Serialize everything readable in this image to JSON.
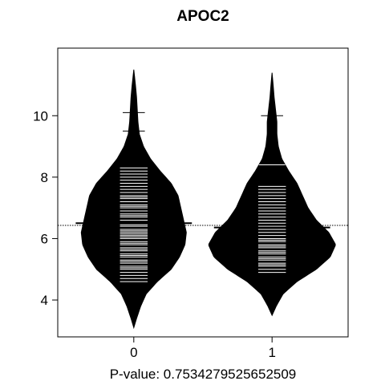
{
  "chart_data": {
    "type": "beanplot",
    "title": "APOC2",
    "xlabel": "P-value: 0.7534279525652509",
    "ylabel": "",
    "categories": [
      "0",
      "1"
    ],
    "ylim": [
      2.8,
      12.2
    ],
    "xlim": [
      -0.55,
      1.55
    ],
    "y_ticks": [
      4,
      6,
      8,
      10
    ],
    "y_tick_labels": [
      "4",
      "6",
      "8",
      "10"
    ],
    "overall_mean": 6.43,
    "groups": [
      {
        "name": "0",
        "mean": 6.5,
        "density": [
          [
            3.1,
            0
          ],
          [
            3.4,
            0.02
          ],
          [
            3.8,
            0.05
          ],
          [
            4.2,
            0.09
          ],
          [
            4.6,
            0.17
          ],
          [
            5.0,
            0.27
          ],
          [
            5.4,
            0.33
          ],
          [
            5.8,
            0.37
          ],
          [
            6.2,
            0.38
          ],
          [
            6.6,
            0.36
          ],
          [
            7.0,
            0.34
          ],
          [
            7.4,
            0.32
          ],
          [
            7.8,
            0.27
          ],
          [
            8.2,
            0.19
          ],
          [
            8.6,
            0.12
          ],
          [
            9.0,
            0.07
          ],
          [
            9.4,
            0.04
          ],
          [
            9.8,
            0.03
          ],
          [
            10.2,
            0.025
          ],
          [
            10.6,
            0.02
          ],
          [
            11.0,
            0.012
          ],
          [
            11.5,
            0
          ]
        ],
        "values": [
          4.6,
          4.7,
          4.8,
          4.9,
          5.0,
          5.05,
          5.1,
          5.2,
          5.25,
          5.3,
          5.4,
          5.45,
          5.5,
          5.6,
          5.65,
          5.7,
          5.8,
          5.85,
          5.9,
          6.0,
          6.05,
          6.1,
          6.15,
          6.2,
          6.25,
          6.3,
          6.4,
          6.45,
          6.5,
          6.6,
          6.7,
          6.75,
          6.8,
          6.9,
          7.0,
          7.05,
          7.1,
          7.2,
          7.3,
          7.35,
          7.4,
          7.5,
          7.6,
          7.7,
          7.8,
          7.9,
          8.0,
          8.1,
          8.2,
          8.3,
          9.5,
          10.1
        ]
      },
      {
        "name": "1",
        "mean": 6.36,
        "density": [
          [
            3.5,
            0
          ],
          [
            3.8,
            0.03
          ],
          [
            4.2,
            0.08
          ],
          [
            4.6,
            0.18
          ],
          [
            5.0,
            0.32
          ],
          [
            5.4,
            0.42
          ],
          [
            5.8,
            0.46
          ],
          [
            6.2,
            0.41
          ],
          [
            6.6,
            0.32
          ],
          [
            7.0,
            0.26
          ],
          [
            7.4,
            0.22
          ],
          [
            7.8,
            0.18
          ],
          [
            8.2,
            0.12
          ],
          [
            8.6,
            0.07
          ],
          [
            9.0,
            0.045
          ],
          [
            9.4,
            0.035
          ],
          [
            9.8,
            0.035
          ],
          [
            10.2,
            0.025
          ],
          [
            10.6,
            0.015
          ],
          [
            11.0,
            0.008
          ],
          [
            11.4,
            0
          ]
        ],
        "values": [
          4.9,
          5.0,
          5.1,
          5.15,
          5.2,
          5.3,
          5.35,
          5.4,
          5.5,
          5.55,
          5.6,
          5.7,
          5.75,
          5.8,
          5.9,
          5.95,
          6.0,
          6.1,
          6.2,
          6.3,
          6.4,
          6.5,
          6.6,
          6.7,
          6.8,
          6.9,
          7.0,
          7.1,
          7.2,
          7.3,
          7.4,
          7.5,
          7.6,
          7.7,
          8.4,
          10.0
        ]
      }
    ],
    "colors": {
      "bean": "#000000",
      "line": "#ffffff",
      "background": "#ffffff"
    }
  }
}
